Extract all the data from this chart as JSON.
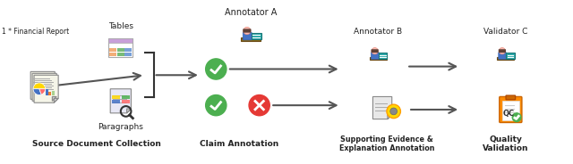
{
  "bg_color": "#ffffff",
  "labels": {
    "source": "Source Document Collection",
    "claim": "Claim Annotation",
    "supporting": "Supporting Evidence &\nExplanation Annotation",
    "quality": "Quality\nValidation",
    "tables": "Tables",
    "paragraphs": "Paragraphs",
    "annotator_a": "Annotator A",
    "annotator_b": "Annotator B",
    "validator_c": "Validator C",
    "financial": "1 * Financial Report"
  },
  "colors": {
    "green_check": "#4CAF50",
    "red_x": "#e53935",
    "arrow": "#555555",
    "bracket": "#333333",
    "table_header": "#c8a0d8",
    "table_cell1": "#f0a060",
    "table_cell2": "#60b060",
    "table_cell3": "#6090d0",
    "label_color": "#222222",
    "person_skin": "#FDBCB4",
    "person_hair": "#5D4037",
    "person_shirt": "#4472C4",
    "desk_color": "#8B6914",
    "screen_color": "#2aa8a8"
  }
}
